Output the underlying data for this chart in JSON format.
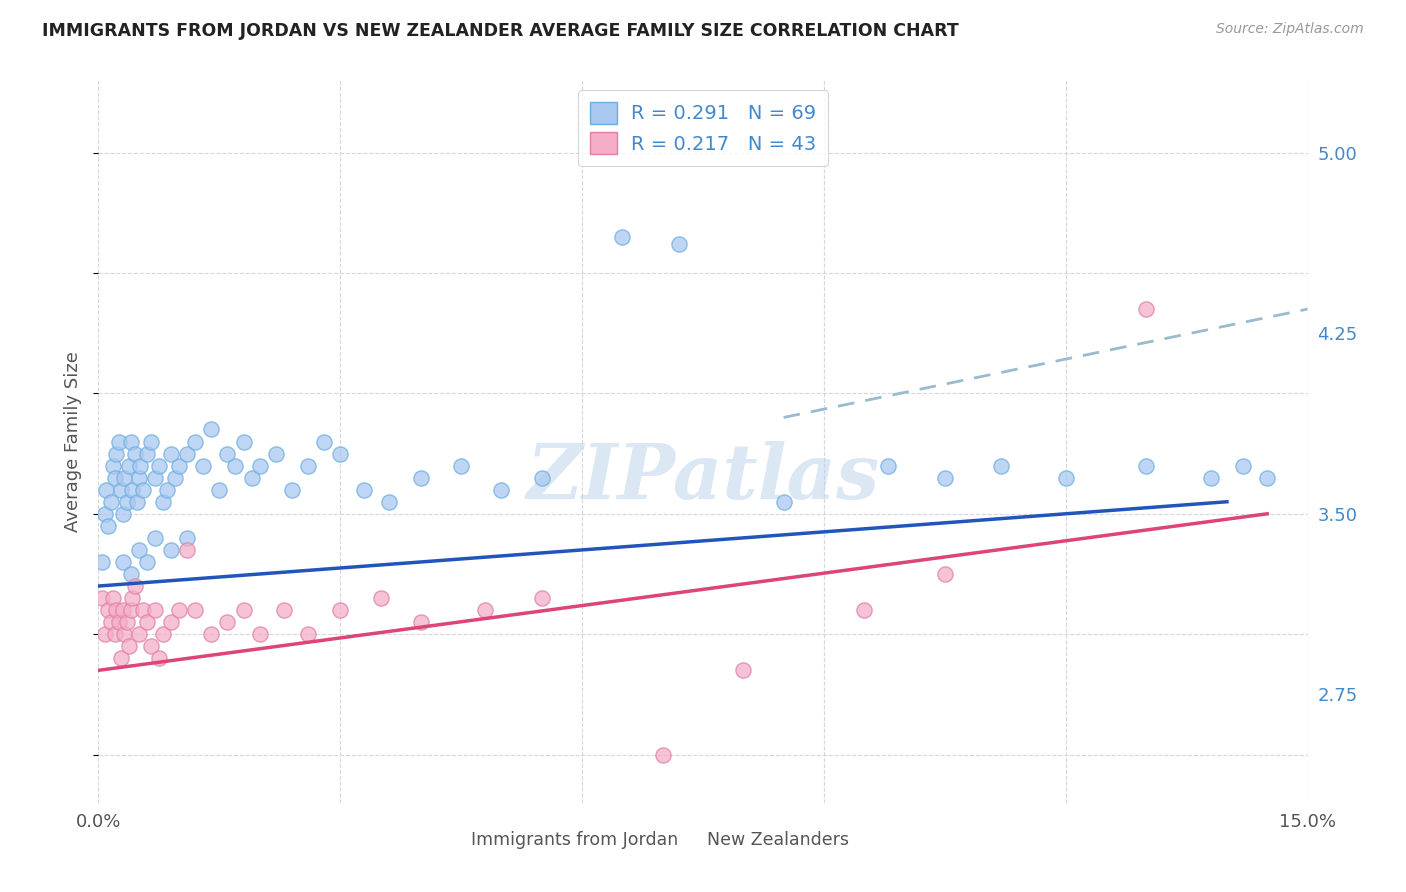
{
  "title": "IMMIGRANTS FROM JORDAN VS NEW ZEALANDER AVERAGE FAMILY SIZE CORRELATION CHART",
  "source": "Source: ZipAtlas.com",
  "ylabel": "Average Family Size",
  "right_yticks": [
    2.75,
    3.5,
    4.25,
    5.0
  ],
  "right_yticklabels": [
    "2.75",
    "3.50",
    "4.25",
    "5.00"
  ],
  "watermark": "ZIPatlas",
  "blue_scatter_color": "#a8c8f0",
  "blue_scatter_edge": "#6eaee0",
  "pink_scatter_color": "#f4aec8",
  "pink_scatter_edge": "#e080a8",
  "blue_line_color": "#2255bb",
  "pink_line_color": "#dd4477",
  "dashed_line_color": "#99bbcc",
  "right_axis_color": "#4488cc",
  "grid_color": "#ccccdd",
  "xlim": [
    0,
    15
  ],
  "ylim": [
    2.3,
    5.3
  ],
  "jordan_x": [
    0.05,
    0.08,
    0.1,
    0.12,
    0.15,
    0.18,
    0.2,
    0.22,
    0.25,
    0.28,
    0.3,
    0.32,
    0.35,
    0.38,
    0.4,
    0.42,
    0.45,
    0.48,
    0.5,
    0.52,
    0.55,
    0.6,
    0.65,
    0.7,
    0.75,
    0.8,
    0.85,
    0.9,
    0.95,
    1.0,
    1.1,
    1.2,
    1.3,
    1.4,
    1.5,
    1.6,
    1.7,
    1.8,
    1.9,
    2.0,
    2.2,
    2.4,
    2.6,
    2.8,
    3.0,
    3.3,
    3.6,
    4.0,
    4.5,
    5.0,
    5.5,
    6.5,
    7.2,
    8.5,
    9.8,
    10.5,
    11.2,
    12.0,
    13.0,
    13.8,
    14.2,
    14.5,
    0.3,
    0.5,
    0.7,
    0.4,
    0.6,
    0.9,
    1.1
  ],
  "jordan_y": [
    3.3,
    3.5,
    3.6,
    3.45,
    3.55,
    3.7,
    3.65,
    3.75,
    3.8,
    3.6,
    3.5,
    3.65,
    3.55,
    3.7,
    3.8,
    3.6,
    3.75,
    3.55,
    3.65,
    3.7,
    3.6,
    3.75,
    3.8,
    3.65,
    3.7,
    3.55,
    3.6,
    3.75,
    3.65,
    3.7,
    3.75,
    3.8,
    3.7,
    3.85,
    3.6,
    3.75,
    3.7,
    3.8,
    3.65,
    3.7,
    3.75,
    3.6,
    3.7,
    3.8,
    3.75,
    3.6,
    3.55,
    3.65,
    3.7,
    3.6,
    3.65,
    4.65,
    4.62,
    3.55,
    3.7,
    3.65,
    3.7,
    3.65,
    3.7,
    3.65,
    3.7,
    3.65,
    3.3,
    3.35,
    3.4,
    3.25,
    3.3,
    3.35,
    3.4
  ],
  "nz_x": [
    0.05,
    0.08,
    0.12,
    0.15,
    0.18,
    0.2,
    0.22,
    0.25,
    0.28,
    0.3,
    0.32,
    0.35,
    0.38,
    0.4,
    0.42,
    0.45,
    0.5,
    0.55,
    0.6,
    0.65,
    0.7,
    0.75,
    0.8,
    0.9,
    1.0,
    1.1,
    1.2,
    1.4,
    1.6,
    1.8,
    2.0,
    2.3,
    2.6,
    3.0,
    3.5,
    4.0,
    4.8,
    5.5,
    7.0,
    8.0,
    9.5,
    10.5,
    13.0
  ],
  "nz_y": [
    3.15,
    3.0,
    3.1,
    3.05,
    3.15,
    3.0,
    3.1,
    3.05,
    2.9,
    3.1,
    3.0,
    3.05,
    2.95,
    3.1,
    3.15,
    3.2,
    3.0,
    3.1,
    3.05,
    2.95,
    3.1,
    2.9,
    3.0,
    3.05,
    3.1,
    3.35,
    3.1,
    3.0,
    3.05,
    3.1,
    3.0,
    3.1,
    3.0,
    3.1,
    3.15,
    3.05,
    3.1,
    3.15,
    2.5,
    2.85,
    3.1,
    3.25,
    4.35
  ],
  "blue_line_x0": 0,
  "blue_line_y0": 3.2,
  "blue_line_x1": 14.0,
  "blue_line_y1": 3.55,
  "pink_line_x0": 0,
  "pink_line_y0": 2.85,
  "pink_line_x1": 14.5,
  "pink_line_y1": 3.5,
  "dash_line_x0": 8.5,
  "dash_line_y0": 3.9,
  "dash_line_x1": 15.0,
  "dash_line_y1": 4.35,
  "legend_r1_text": "R = 0.291   N = 69",
  "legend_r2_text": "R = 0.217   N = 43",
  "bottom_label1": "Immigrants from Jordan",
  "bottom_label2": "New Zealanders"
}
